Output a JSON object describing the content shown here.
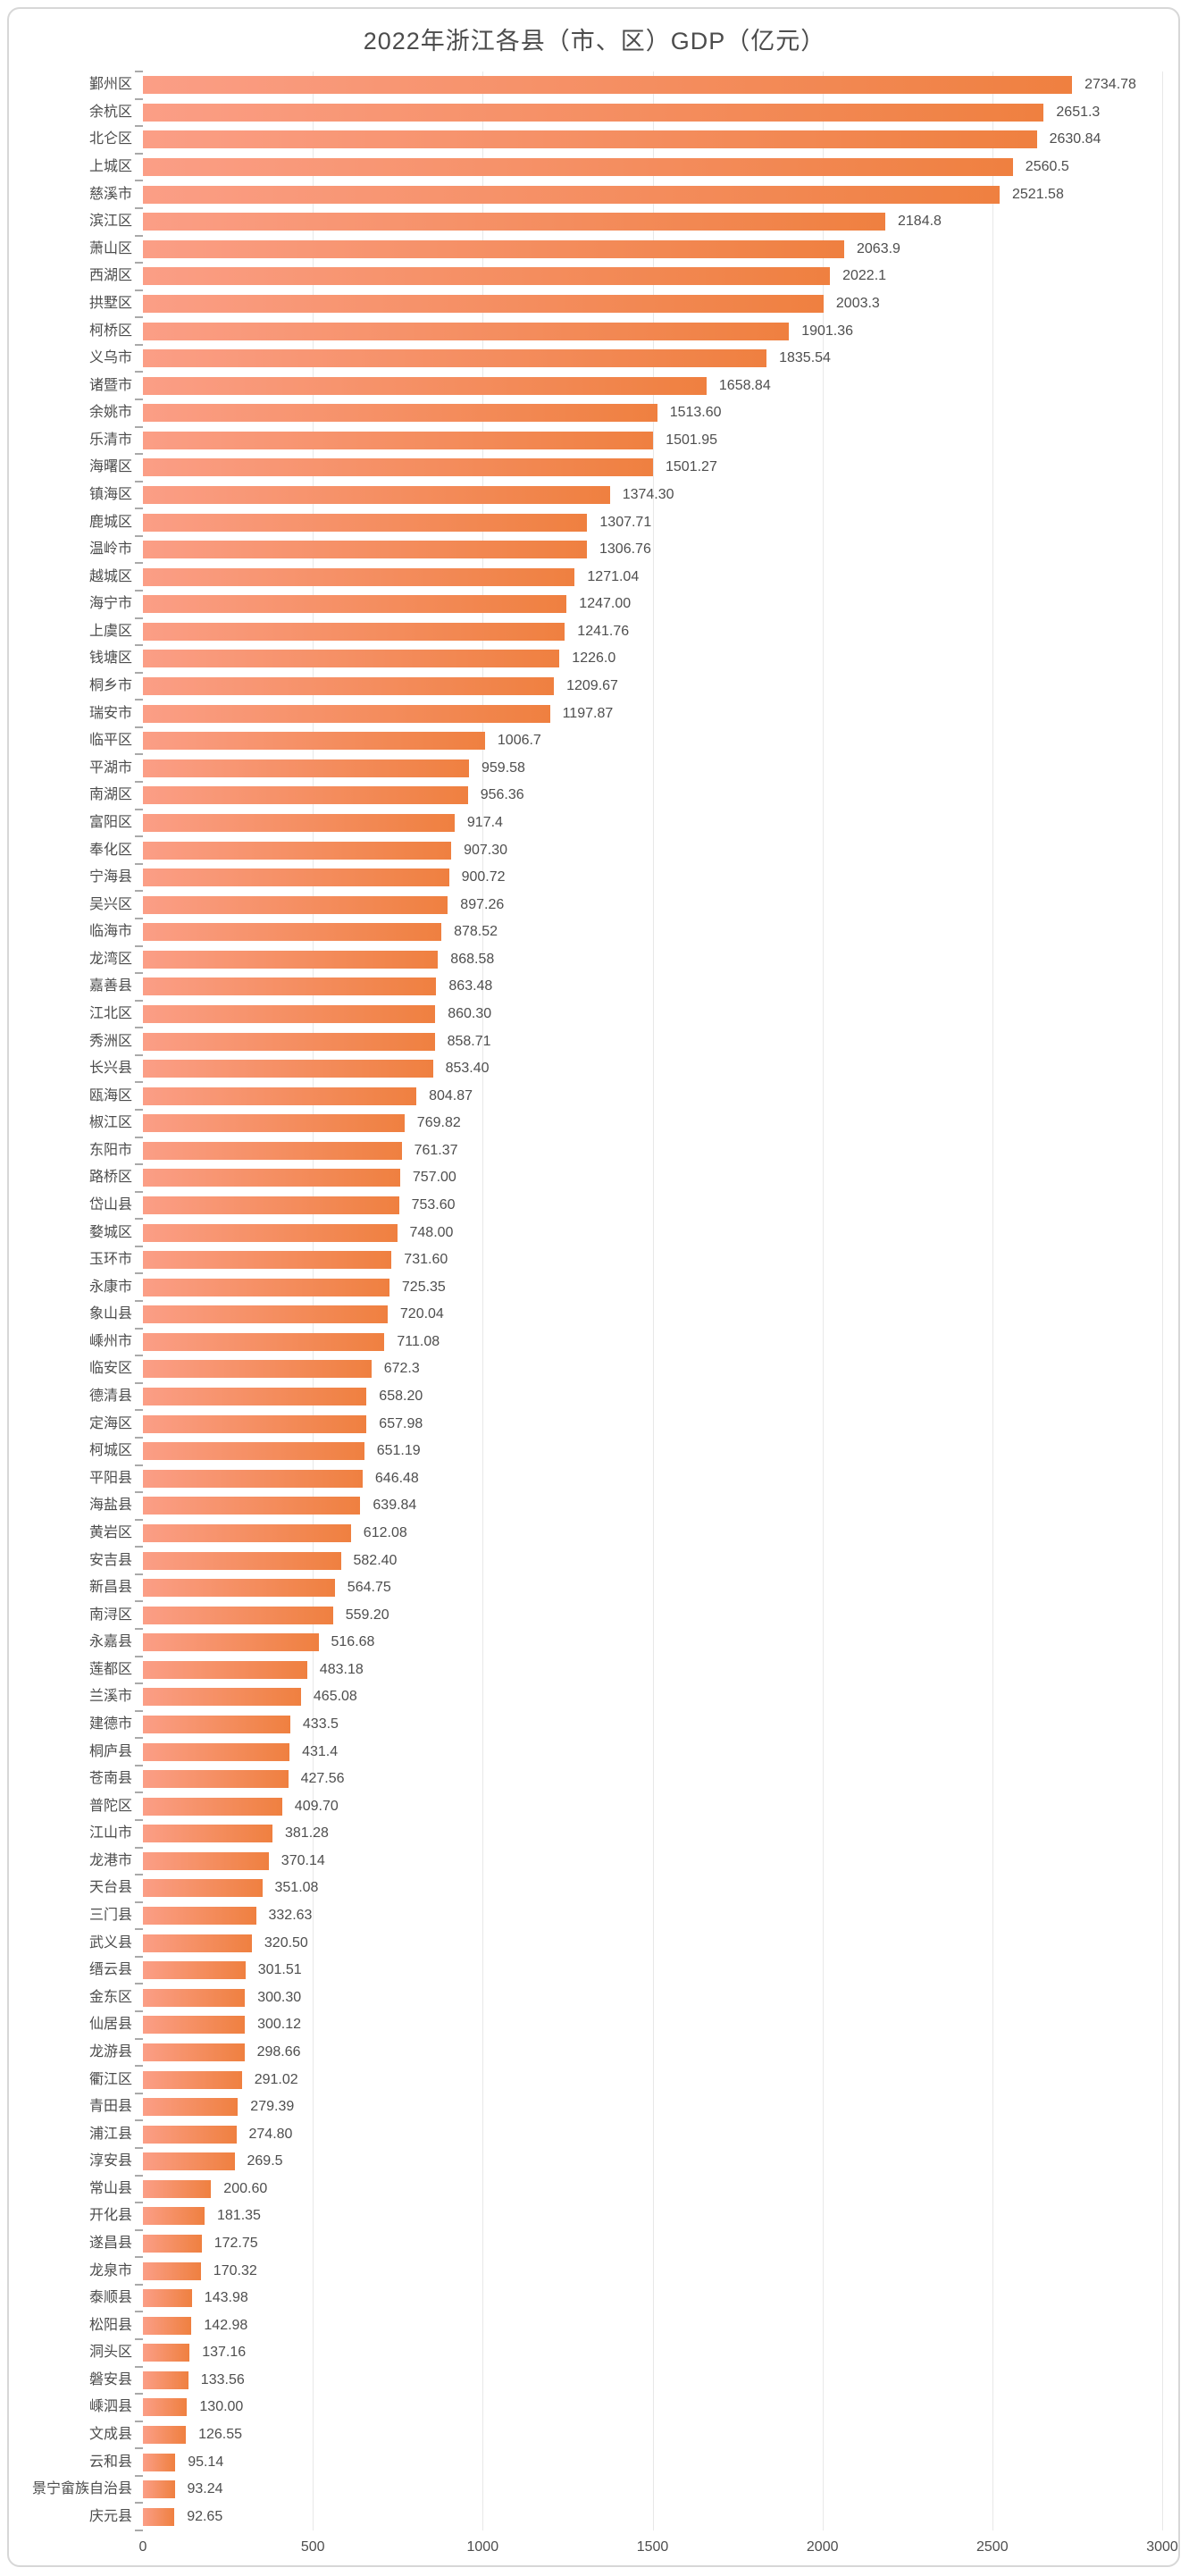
{
  "page": {
    "background": "#ffffff",
    "card_border_color": "#d7d7d7"
  },
  "chart_data": {
    "type": "bar",
    "orientation": "horizontal",
    "title": "2022年浙江各县（市、区）GDP（亿元）",
    "xlabel": "",
    "ylabel": "",
    "xlim": [
      0,
      3000
    ],
    "x_ticks": [
      0,
      500,
      1000,
      1500,
      2000,
      2500,
      3000
    ],
    "x_tick_labels": [
      "0",
      "500",
      "1000",
      "1500",
      "2000",
      "2500",
      "3000"
    ],
    "grid": "vertical",
    "legend": "none",
    "bar_gradient_left": "#FB9E86",
    "bar_gradient_right": "#EF8040",
    "title_color": "#4c4c4c",
    "label_color": "#4c4c4c",
    "value_color": "#4e4e4e",
    "grid_color": "#e8e8e8",
    "tick_color": "#a9a9a9",
    "categories": [
      "鄞州区",
      "余杭区",
      "北仑区",
      "上城区",
      "慈溪市",
      "滨江区",
      "萧山区",
      "西湖区",
      "拱墅区",
      "柯桥区",
      "义乌市",
      "诸暨市",
      "余姚市",
      "乐清市",
      "海曙区",
      "镇海区",
      "鹿城区",
      "温岭市",
      "越城区",
      "海宁市",
      "上虞区",
      "钱塘区",
      "桐乡市",
      "瑞安市",
      "临平区",
      "平湖市",
      "南湖区",
      "富阳区",
      "奉化区",
      "宁海县",
      "吴兴区",
      "临海市",
      "龙湾区",
      "嘉善县",
      "江北区",
      "秀洲区",
      "长兴县",
      "瓯海区",
      "椒江区",
      "东阳市",
      "路桥区",
      "岱山县",
      "婺城区",
      "玉环市",
      "永康市",
      "象山县",
      "嵊州市",
      "临安区",
      "德清县",
      "定海区",
      "柯城区",
      "平阳县",
      "海盐县",
      "黄岩区",
      "安吉县",
      "新昌县",
      "南浔区",
      "永嘉县",
      "莲都区",
      "兰溪市",
      "建德市",
      "桐庐县",
      "苍南县",
      "普陀区",
      "江山市",
      "龙港市",
      "天台县",
      "三门县",
      "武义县",
      "缙云县",
      "金东区",
      "仙居县",
      "龙游县",
      "衢江区",
      "青田县",
      "浦江县",
      "淳安县",
      "常山县",
      "开化县",
      "遂昌县",
      "龙泉市",
      "泰顺县",
      "松阳县",
      "洞头区",
      "磐安县",
      "嵊泗县",
      "文成县",
      "云和县",
      "景宁畲族自治县",
      "庆元县"
    ],
    "values": [
      2734.78,
      2651.3,
      2630.84,
      2560.5,
      2521.58,
      2184.8,
      2063.9,
      2022.1,
      2003.3,
      1901.36,
      1835.54,
      1658.84,
      1513.6,
      1501.95,
      1501.27,
      1374.3,
      1307.71,
      1306.76,
      1271.04,
      1247.0,
      1241.76,
      1226.0,
      1209.67,
      1197.87,
      1006.7,
      959.58,
      956.36,
      917.4,
      907.3,
      900.72,
      897.26,
      878.52,
      868.58,
      863.48,
      860.3,
      858.71,
      853.4,
      804.87,
      769.82,
      761.37,
      757.0,
      753.6,
      748.0,
      731.6,
      725.35,
      720.04,
      711.08,
      672.3,
      658.2,
      657.98,
      651.19,
      646.48,
      639.84,
      612.08,
      582.4,
      564.75,
      559.2,
      516.68,
      483.18,
      465.08,
      433.5,
      431.4,
      427.56,
      409.7,
      381.28,
      370.14,
      351.08,
      332.63,
      320.5,
      301.51,
      300.3,
      300.12,
      298.66,
      291.02,
      279.39,
      274.8,
      269.5,
      200.6,
      181.35,
      172.75,
      170.32,
      143.98,
      142.98,
      137.16,
      133.56,
      130.0,
      126.55,
      95.14,
      93.24,
      92.65
    ],
    "value_labels": [
      "2734.78",
      "2651.3",
      "2630.84",
      "2560.5",
      "2521.58",
      "2184.8",
      "2063.9",
      "2022.1",
      "2003.3",
      "1901.36",
      "1835.54",
      "1658.84",
      "1513.60",
      "1501.95",
      "1501.27",
      "1374.30",
      "1307.71",
      "1306.76",
      "1271.04",
      "1247.00",
      "1241.76",
      "1226.0",
      "1209.67",
      "1197.87",
      "1006.7",
      "959.58",
      "956.36",
      "917.4",
      "907.30",
      "900.72",
      "897.26",
      "878.52",
      "868.58",
      "863.48",
      "860.30",
      "858.71",
      "853.40",
      "804.87",
      "769.82",
      "761.37",
      "757.00",
      "753.60",
      "748.00",
      "731.60",
      "725.35",
      "720.04",
      "711.08",
      "672.3",
      "658.20",
      "657.98",
      "651.19",
      "646.48",
      "639.84",
      "612.08",
      "582.40",
      "564.75",
      "559.20",
      "516.68",
      "483.18",
      "465.08",
      "433.5",
      "431.4",
      "427.56",
      "409.70",
      "381.28",
      "370.14",
      "351.08",
      "332.63",
      "320.50",
      "301.51",
      "300.30",
      "300.12",
      "298.66",
      "291.02",
      "279.39",
      "274.80",
      "269.5",
      "200.60",
      "181.35",
      "172.75",
      "170.32",
      "143.98",
      "142.98",
      "137.16",
      "133.56",
      "130.00",
      "126.55",
      "95.14",
      "93.24",
      "92.65"
    ]
  }
}
